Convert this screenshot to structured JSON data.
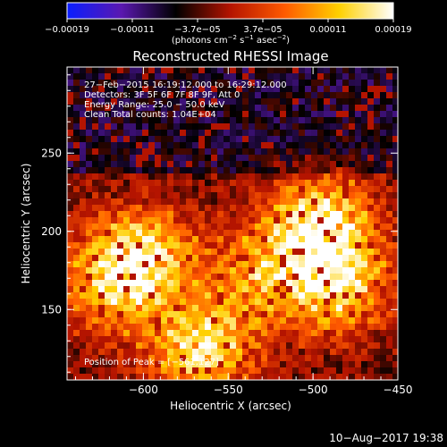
{
  "colorbar": {
    "tick_labels": [
      "−0.00019",
      "−0.00011",
      "−3.7e−05",
      "3.7e−05",
      "0.00011",
      "0.00019"
    ],
    "unit_main": "(photons cm",
    "unit_sup1": "−2",
    "unit_mid1": " s",
    "unit_sup2": "−1",
    "unit_mid2": " asec",
    "unit_sup3": "−2",
    "unit_end": ")",
    "range": [
      -0.00019,
      0.00019
    ],
    "colors": [
      "#0a1eff",
      "#5a18b0",
      "#000000",
      "#b41400",
      "#ff5a00",
      "#ffd000",
      "#ffffff"
    ]
  },
  "chart_data": {
    "type": "heatmap",
    "title": "Reconstructed RHESSI Image",
    "xlabel": "Heliocentric X (arcsec)",
    "ylabel": "Heliocentric Y (arcsec)",
    "xlim": [
      -645,
      -450
    ],
    "ylim": [
      105,
      305
    ],
    "x_ticks": [
      -600,
      -550,
      -500,
      -450
    ],
    "y_ticks": [
      150,
      200,
      250
    ],
    "x_tick_labels": [
      "−600",
      "−550",
      "−500",
      "−450"
    ],
    "y_tick_labels": [
      "150",
      "200",
      "250"
    ],
    "annotations": [
      "27−Feb−2015 16:19:12.000 to 16:29:12.000",
      "Detectors: 3F 5F 6F 7F 8F 9F, Att 0",
      "Energy Range: 25.0 − 50.0 keV",
      "Clean     Total counts: 1.04E+04"
    ],
    "peak_label": "Position of Peak = [−561,127]",
    "peak": {
      "x": -561,
      "y": 127
    },
    "bright_regions": [
      {
        "x": -495,
        "y": 205,
        "strength": 1.0
      },
      {
        "x": -485,
        "y": 165,
        "strength": 0.9
      },
      {
        "x": -600,
        "y": 185,
        "strength": 0.85
      },
      {
        "x": -565,
        "y": 125,
        "strength": 1.0
      },
      {
        "x": -620,
        "y": 165,
        "strength": 0.7
      },
      {
        "x": -530,
        "y": 175,
        "strength": 0.6
      }
    ]
  },
  "footer": {
    "timestamp": "10−Aug−2017 19:38"
  }
}
